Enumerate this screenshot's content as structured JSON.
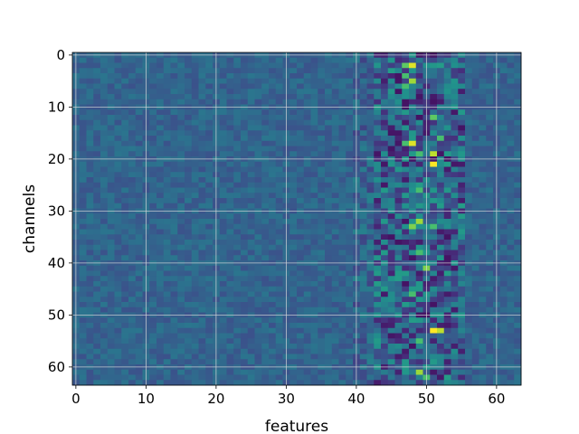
{
  "chart_data": {
    "type": "heatmap",
    "title": "",
    "xlabel": "features",
    "ylabel": "channels",
    "n_rows": 64,
    "n_cols": 64,
    "xlim": [
      -0.5,
      63.5
    ],
    "ylim": [
      63.5,
      -0.5
    ],
    "x_ticks": [
      "0",
      "10",
      "20",
      "30",
      "40",
      "50",
      "60"
    ],
    "y_ticks": [
      "0",
      "10",
      "20",
      "30",
      "40",
      "50",
      "60"
    ],
    "grid": true,
    "colormap": "viridis",
    "colormap_stops": [
      "#440154",
      "#472d7b",
      "#3b528b",
      "#2c728e",
      "#21918c",
      "#28ae80",
      "#5ec962",
      "#addc30",
      "#fde725"
    ],
    "background_level": 0.32,
    "bright_cells": [
      {
        "row": 2,
        "col": 48,
        "value": 0.95
      },
      {
        "row": 2,
        "col": 47,
        "value": 0.75
      },
      {
        "row": 4,
        "col": 46,
        "value": 0.05
      },
      {
        "row": 4,
        "col": 47,
        "value": 0.7
      },
      {
        "row": 5,
        "col": 48,
        "value": 0.85
      },
      {
        "row": 6,
        "col": 47,
        "value": 0.7
      },
      {
        "row": 12,
        "col": 51,
        "value": 0.75
      },
      {
        "row": 17,
        "col": 48,
        "value": 0.95
      },
      {
        "row": 17,
        "col": 47,
        "value": 0.7
      },
      {
        "row": 16,
        "col": 52,
        "value": 0.7
      },
      {
        "row": 19,
        "col": 51,
        "value": 0.9
      },
      {
        "row": 19,
        "col": 49,
        "value": 0.7
      },
      {
        "row": 21,
        "col": 51,
        "value": 1.0
      },
      {
        "row": 26,
        "col": 49,
        "value": 0.7
      },
      {
        "row": 32,
        "col": 49,
        "value": 0.85
      },
      {
        "row": 33,
        "col": 48,
        "value": 0.8
      },
      {
        "row": 33,
        "col": 51,
        "value": 0.7
      },
      {
        "row": 38,
        "col": 49,
        "value": 0.7
      },
      {
        "row": 41,
        "col": 50,
        "value": 0.8
      },
      {
        "row": 46,
        "col": 48,
        "value": 0.7
      },
      {
        "row": 53,
        "col": 51,
        "value": 1.0
      },
      {
        "row": 53,
        "col": 52,
        "value": 0.9
      },
      {
        "row": 55,
        "col": 49,
        "value": 0.7
      },
      {
        "row": 61,
        "col": 49,
        "value": 0.85
      },
      {
        "row": 62,
        "col": 50,
        "value": 0.7
      }
    ],
    "dark_cells": [
      {
        "row": 7,
        "col": 46,
        "value": 0.05
      },
      {
        "row": 9,
        "col": 47,
        "value": 0.05
      },
      {
        "row": 14,
        "col": 45,
        "value": 0.08
      },
      {
        "row": 24,
        "col": 47,
        "value": 0.08
      },
      {
        "row": 36,
        "col": 46,
        "value": 0.05
      },
      {
        "row": 39,
        "col": 48,
        "value": 0.05
      },
      {
        "row": 44,
        "col": 47,
        "value": 0.05
      },
      {
        "row": 48,
        "col": 51,
        "value": 0.05
      },
      {
        "row": 50,
        "col": 50,
        "value": 0.05
      },
      {
        "row": 56,
        "col": 48,
        "value": 0.05
      },
      {
        "row": 58,
        "col": 46,
        "value": 0.08
      }
    ]
  }
}
